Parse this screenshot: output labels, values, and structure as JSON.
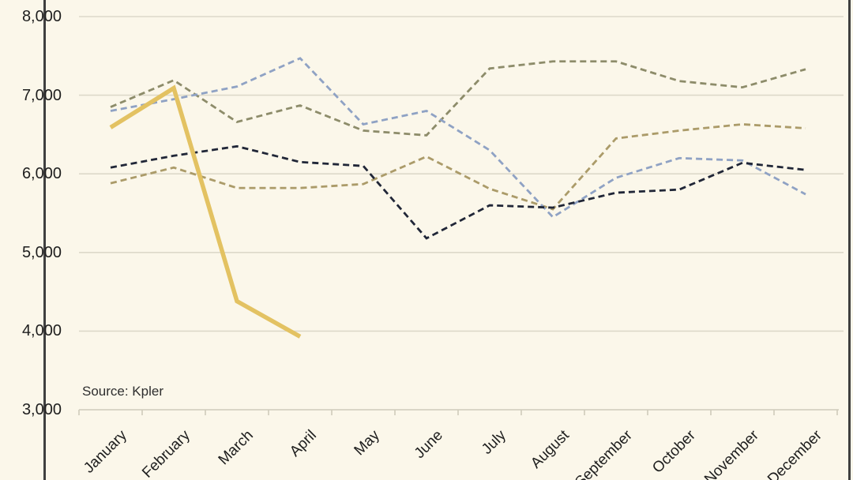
{
  "source_note": "Source: Kpler",
  "colors": {
    "background": "#FBF7EA",
    "gridline": "#DDD9C9",
    "axis": "#CFCBBB",
    "text": "#1E1E1E",
    "side_border": "#3F3F3F"
  },
  "chart_data": {
    "type": "line",
    "title": "",
    "xlabel": "",
    "ylabel": "",
    "legend": "none",
    "grid": true,
    "ylim": [
      3000,
      8000
    ],
    "y_tick_values": [
      8000,
      7000,
      6000,
      5000,
      4000,
      3000
    ],
    "y_tick_labels": [
      "8,000",
      "7,000",
      "6,000",
      "5,000",
      "4,000",
      "3,000"
    ],
    "categories": [
      "January",
      "February",
      "March",
      "April",
      "May",
      "June",
      "July",
      "August",
      "September",
      "October",
      "November",
      "December"
    ],
    "series": [
      {
        "name": "series-olive-dashed",
        "style": "dashed",
        "color": "#8D8C6A",
        "width": 2.8,
        "values": [
          6850,
          7190,
          6660,
          6870,
          6550,
          6490,
          7340,
          7430,
          7430,
          7180,
          7100,
          7330
        ]
      },
      {
        "name": "series-tan-dashed",
        "style": "dashed",
        "color": "#AB9B69",
        "width": 2.8,
        "values": [
          5880,
          6080,
          5820,
          5820,
          5870,
          6220,
          5810,
          5550,
          6450,
          6550,
          6630,
          6580
        ]
      },
      {
        "name": "series-blue-dashed",
        "style": "dashed",
        "color": "#8FA2C4",
        "width": 2.8,
        "values": [
          6800,
          6950,
          7110,
          7470,
          6630,
          6800,
          6300,
          5450,
          5950,
          6200,
          6170,
          5740
        ]
      },
      {
        "name": "series-navy-dashed",
        "style": "dashed",
        "color": "#202637",
        "width": 2.8,
        "values": [
          6080,
          6230,
          6350,
          6150,
          6100,
          5180,
          5600,
          5570,
          5760,
          5800,
          6140,
          6050
        ]
      },
      {
        "name": "series-gold-solid",
        "style": "solid",
        "color": "#E3C262",
        "width": 5.5,
        "values": [
          6590,
          7090,
          4380,
          3930,
          null,
          null,
          null,
          null,
          null,
          null,
          null,
          null
        ]
      }
    ]
  }
}
